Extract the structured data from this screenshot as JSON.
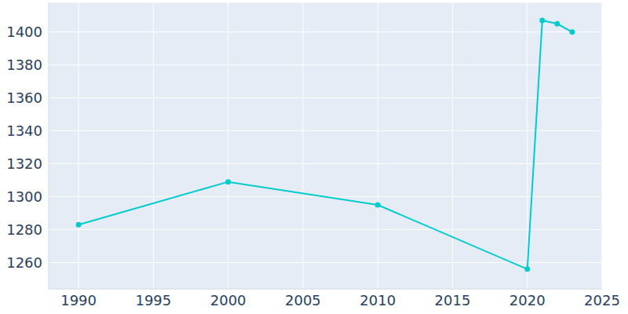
{
  "chart_data": {
    "type": "line",
    "x": [
      1990,
      2000,
      2010,
      2020,
      2021,
      2022,
      2023
    ],
    "values": [
      1283,
      1309,
      1295,
      1256,
      1407,
      1405,
      1400
    ],
    "color": "#00cccc",
    "xlim": [
      1988,
      2025
    ],
    "ylim": [
      1244,
      1418
    ],
    "xticks": [
      1990,
      1995,
      2000,
      2005,
      2010,
      2015,
      2020,
      2025
    ],
    "yticks": [
      1260,
      1280,
      1300,
      1320,
      1340,
      1360,
      1380,
      1400
    ],
    "grid": true,
    "marker": "circle"
  }
}
